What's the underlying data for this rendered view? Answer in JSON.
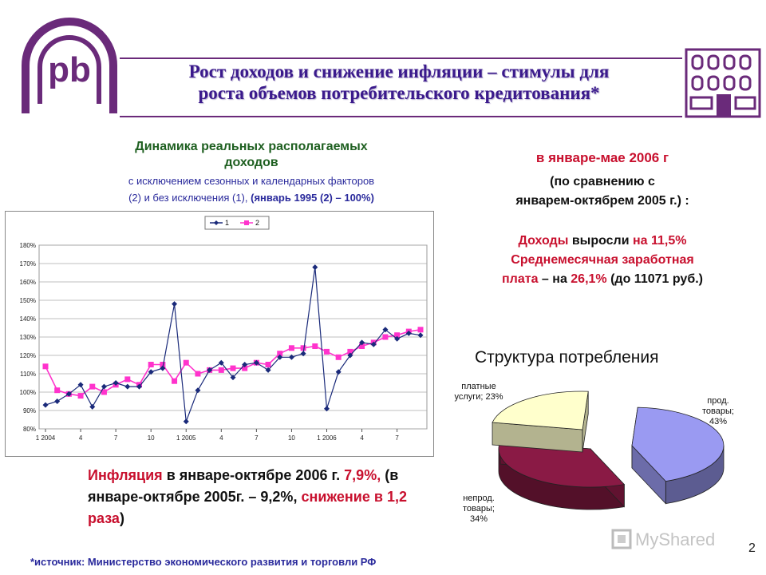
{
  "slide": {
    "title_line1": "Рост доходов и снижение инфляции – стимулы для",
    "title_line2": "роста объемов потребительского кредитования*",
    "page_number": "2",
    "source": "*источник: Министерство экономического развития и торговли РФ",
    "logo_text": "pb",
    "watermark": "MyShared"
  },
  "chart_heading": {
    "line1": "Динамика реальных располагаемых",
    "line2": "доходов",
    "line3": "с исключением сезонных и календарных факторов",
    "line4_a": "(2) и без исключения (1), ",
    "line4_b": "(январь 1995 (2) – 100%)"
  },
  "right_text": {
    "period": "в январе-мае 2006 г",
    "comparison_line1": "(по сравнению с",
    "comparison_line2": "январем-октябрем 2005 г.) :",
    "income_a": "Доходы ",
    "income_b": "выросли",
    "income_c": " на 11,5%",
    "wage_line1": "Среднемесячная заработная",
    "wage_a": "плата",
    "wage_b": " – на ",
    "wage_c": "26,1%",
    "wage_d": " (до 11071 руб.)"
  },
  "inflation_text": {
    "a": "Инфляция",
    "b": " в январе-октябре 2006 г. ",
    "c": "7,9%,",
    "d": " (в январе-октябре 2005г. – 9,2%, ",
    "e": "снижение в 1,2 раза",
    "f": ")"
  },
  "pie_heading": "Структура потребления",
  "chart_data": [
    {
      "type": "line",
      "title": "",
      "legend": [
        "1",
        "2"
      ],
      "legend_position": "top",
      "ylim": [
        80,
        180
      ],
      "yticks": [
        "80%",
        "90%",
        "100%",
        "110%",
        "120%",
        "130%",
        "140%",
        "150%",
        "160%",
        "170%",
        "180%"
      ],
      "xticks": [
        {
          "i": 0,
          "label": "1 2004"
        },
        {
          "i": 3,
          "label": "4"
        },
        {
          "i": 6,
          "label": "7"
        },
        {
          "i": 9,
          "label": "10"
        },
        {
          "i": 12,
          "label": "1 2005"
        },
        {
          "i": 15,
          "label": "4"
        },
        {
          "i": 18,
          "label": "7"
        },
        {
          "i": 21,
          "label": "10"
        },
        {
          "i": 24,
          "label": "1 2006"
        },
        {
          "i": 27,
          "label": "4"
        },
        {
          "i": 30,
          "label": "7"
        }
      ],
      "grid": true,
      "series": [
        {
          "name": "1",
          "color": "#1a2a7a",
          "marker": "diamond",
          "values": [
            93,
            95,
            99,
            104,
            92,
            103,
            105,
            103,
            103,
            111,
            113,
            148,
            84,
            101,
            112,
            116,
            108,
            115,
            116,
            112,
            119,
            119,
            121,
            168,
            91,
            111,
            120,
            127,
            126,
            134,
            129,
            132,
            131
          ]
        },
        {
          "name": "2",
          "color": "#ff33cc",
          "marker": "square",
          "values": [
            114,
            101,
            99,
            98,
            103,
            100,
            104,
            107,
            104,
            115,
            115,
            106,
            116,
            110,
            112,
            112,
            113,
            113,
            116,
            115,
            121,
            124,
            124,
            125,
            122,
            119,
            122,
            125,
            127,
            130,
            131,
            133,
            134
          ]
        }
      ]
    },
    {
      "type": "pie",
      "title": "Структура потребления",
      "slices": [
        {
          "label": "прод. товары; 43%",
          "value": 43,
          "color": "#9a9af2"
        },
        {
          "label": "непрод. товары; 34%",
          "value": 34,
          "color": "#8a1a45"
        },
        {
          "label": "платные услуги; 23%",
          "value": 23,
          "color": "#ffffcc"
        }
      ]
    }
  ]
}
